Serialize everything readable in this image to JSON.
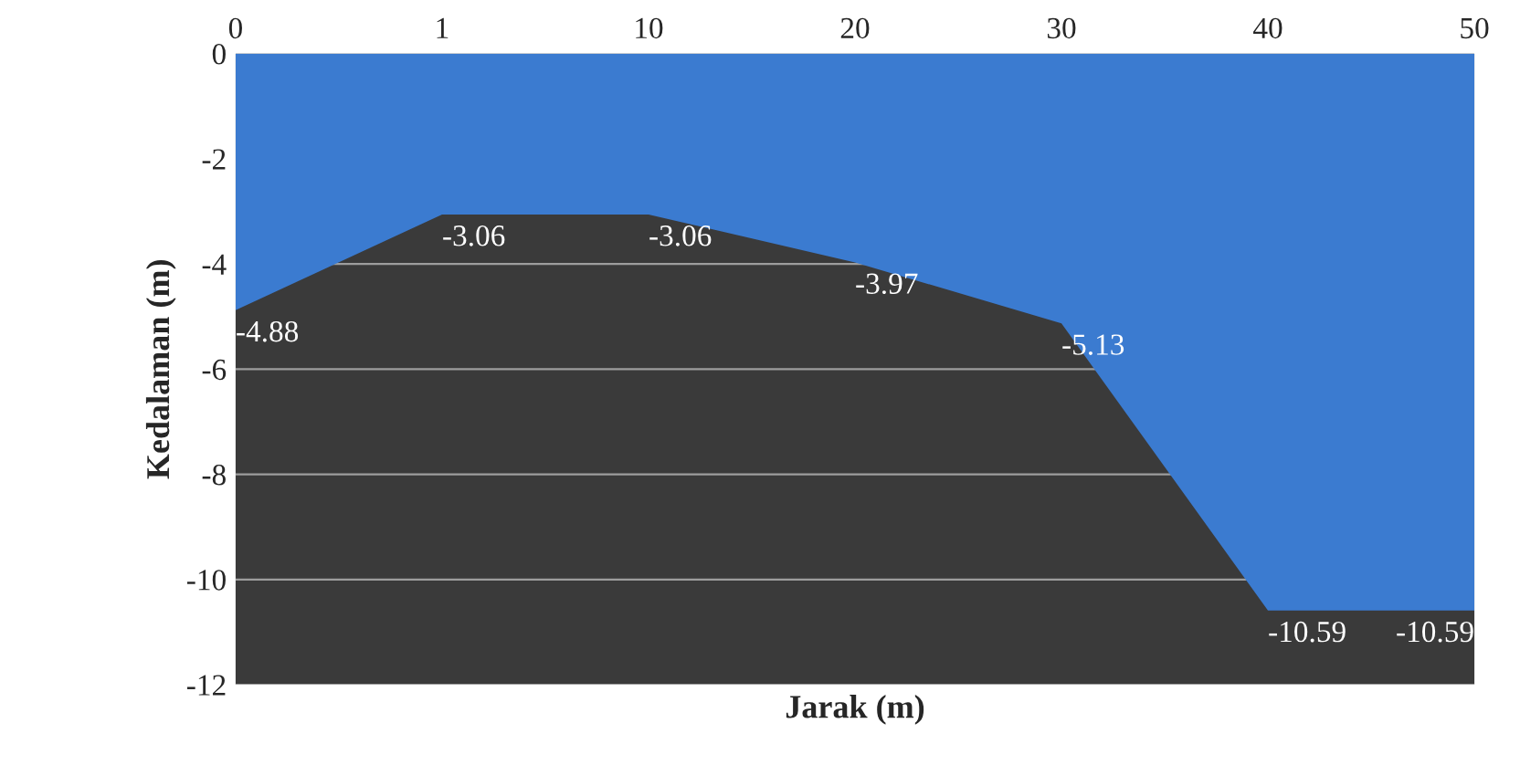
{
  "chart_data": {
    "type": "area",
    "xlabel": "Jarak (m)",
    "ylabel": "Kedalaman (m)",
    "categories": [
      "0",
      "1",
      "10",
      "20",
      "30",
      "40",
      "50"
    ],
    "series": [
      {
        "color": "#3b7bd0",
        "values": [
          -4.88,
          -3.06,
          -3.06,
          -3.97,
          -5.13,
          -10.59,
          -10.59
        ]
      }
    ],
    "ylim": [
      -12,
      0
    ],
    "yticks": [
      0,
      -2,
      -4,
      -6,
      -8,
      -10,
      -12
    ],
    "grid": "y",
    "data_labels": true,
    "legend": false
  }
}
